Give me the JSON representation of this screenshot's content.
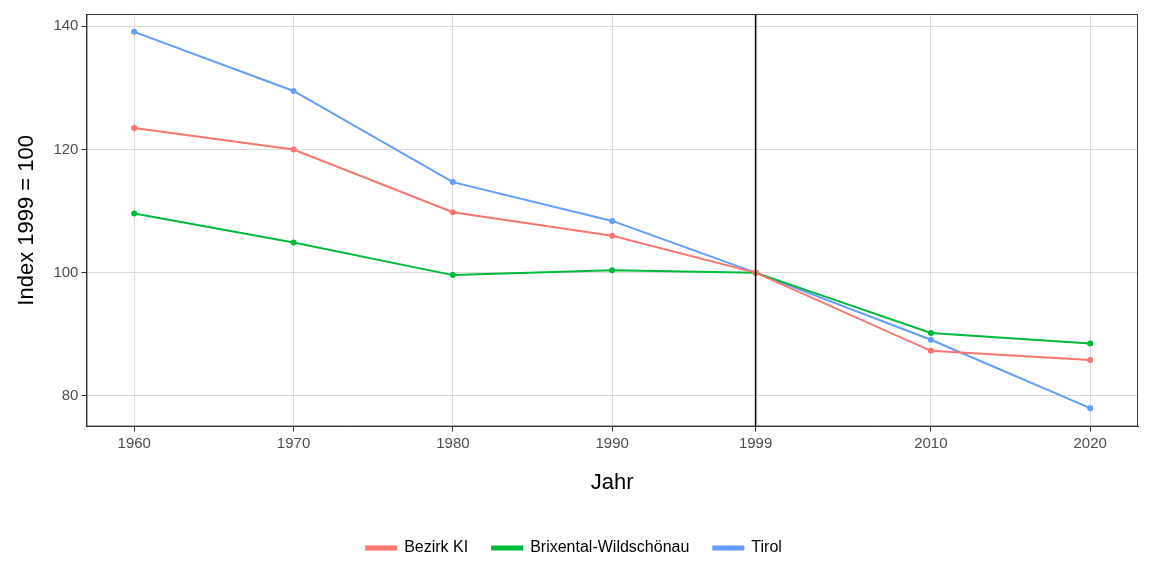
{
  "chart_data": {
    "type": "line",
    "x_label": "Jahr",
    "y_label": "Index 1999 = 100",
    "x": [
      1960,
      1970,
      1980,
      1990,
      1999,
      2010,
      2020
    ],
    "series": [
      {
        "name": "Bezirk KI",
        "color": "#F8766D",
        "values": [
          123.5,
          120.0,
          109.8,
          106.0,
          100.0,
          87.3,
          85.8
        ]
      },
      {
        "name": "Brixental-Wildschönau",
        "color": "#00BA38",
        "values": [
          109.6,
          104.9,
          99.6,
          100.4,
          100.0,
          90.2,
          88.5
        ]
      },
      {
        "name": "Tirol",
        "color": "#619CFF",
        "values": [
          139.1,
          129.5,
          114.7,
          108.4,
          100.0,
          89.1,
          78.0
        ]
      }
    ],
    "xlim": [
      1957,
      2023
    ],
    "xticks": [
      1960,
      1970,
      1980,
      1990,
      1999,
      2010,
      2020
    ],
    "ylim": [
      75,
      142
    ],
    "yticks": [
      80,
      100,
      120,
      140
    ],
    "vertical_line": 1999,
    "grid": true,
    "legend": "bottom",
    "marker": "circle"
  }
}
